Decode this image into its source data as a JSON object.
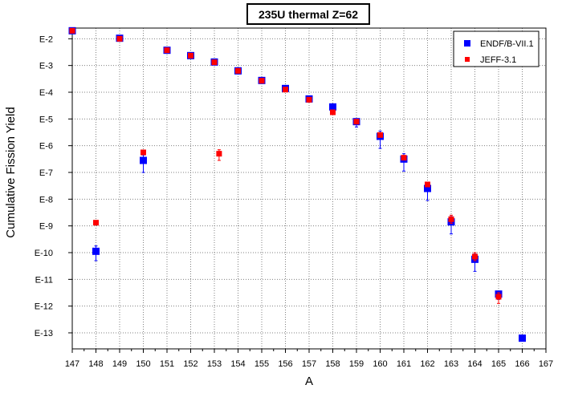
{
  "chart_data": {
    "type": "scatter",
    "title": "235U thermal Z=62",
    "xlabel": "A",
    "ylabel": "Cumulative Fission Yield",
    "xlim": [
      147,
      167
    ],
    "ylim": [
      -13.6,
      -1.6
    ],
    "y_scale": "log10",
    "x_ticks": [
      147,
      148,
      149,
      150,
      151,
      152,
      153,
      154,
      155,
      156,
      157,
      158,
      159,
      160,
      161,
      162,
      163,
      164,
      165,
      166,
      167
    ],
    "y_ticks": [
      {
        "exp": -2,
        "label": "E-2"
      },
      {
        "exp": -3,
        "label": "E-3"
      },
      {
        "exp": -4,
        "label": "E-4"
      },
      {
        "exp": -5,
        "label": "E-5"
      },
      {
        "exp": -6,
        "label": "E-6"
      },
      {
        "exp": -7,
        "label": "E-7"
      },
      {
        "exp": -8,
        "label": "E-8"
      },
      {
        "exp": -9,
        "label": "E-9"
      },
      {
        "exp": -10,
        "label": "E-10"
      },
      {
        "exp": -11,
        "label": "E-11"
      },
      {
        "exp": -12,
        "label": "E-12"
      },
      {
        "exp": -13,
        "label": "E-13"
      }
    ],
    "grid": true,
    "legend_position": "top-right",
    "series": [
      {
        "name": "ENDF/B-VII.1",
        "color": "#0000ff",
        "marker": "square-large",
        "points": [
          {
            "x": 147,
            "log10y": -1.7
          },
          {
            "x": 148,
            "log10y": -9.95,
            "err_hi": 0.2,
            "err_lo": 0.35
          },
          {
            "x": 149,
            "log10y": -1.98
          },
          {
            "x": 150,
            "log10y": -6.55,
            "err_hi": 0.2,
            "err_lo": 0.45
          },
          {
            "x": 151,
            "log10y": -2.43
          },
          {
            "x": 152,
            "log10y": -2.63
          },
          {
            "x": 153,
            "log10y": -2.87
          },
          {
            "x": 154,
            "log10y": -3.2
          },
          {
            "x": 155,
            "log10y": -3.56
          },
          {
            "x": 156,
            "log10y": -3.86
          },
          {
            "x": 157,
            "log10y": -4.25
          },
          {
            "x": 158,
            "log10y": -4.55
          },
          {
            "x": 159,
            "log10y": -5.1,
            "err_hi": 0.1,
            "err_lo": 0.2
          },
          {
            "x": 160,
            "log10y": -5.65,
            "err_hi": 0.2,
            "err_lo": 0.45
          },
          {
            "x": 161,
            "log10y": -6.5,
            "err_hi": 0.2,
            "err_lo": 0.45
          },
          {
            "x": 162,
            "log10y": -7.6,
            "err_hi": 0.2,
            "err_lo": 0.45
          },
          {
            "x": 163,
            "log10y": -8.85,
            "err_hi": 0.2,
            "err_lo": 0.45
          },
          {
            "x": 164,
            "log10y": -10.25,
            "err_hi": 0.2,
            "err_lo": 0.45
          },
          {
            "x": 165,
            "log10y": -11.55,
            "err_hi": 0.1,
            "err_lo": 0.2
          },
          {
            "x": 166,
            "log10y": -13.2
          }
        ]
      },
      {
        "name": "JEFF-3.1",
        "color": "#ff0000",
        "marker": "square-small",
        "points": [
          {
            "x": 147,
            "log10y": -1.7
          },
          {
            "x": 148,
            "log10y": -8.88
          },
          {
            "x": 149,
            "log10y": -2.0
          },
          {
            "x": 150,
            "log10y": -6.25
          },
          {
            "x": 151,
            "log10y": -2.43
          },
          {
            "x": 152,
            "log10y": -2.63
          },
          {
            "x": 153,
            "log10y": -2.88
          },
          {
            "x": 153.2,
            "log10y": -6.3,
            "err_hi": 0.15,
            "err_lo": 0.25
          },
          {
            "x": 154,
            "log10y": -3.2
          },
          {
            "x": 155,
            "log10y": -3.57
          },
          {
            "x": 156,
            "log10y": -3.9
          },
          {
            "x": 157,
            "log10y": -4.28
          },
          {
            "x": 158,
            "log10y": -4.75
          },
          {
            "x": 159,
            "log10y": -5.1
          },
          {
            "x": 160,
            "log10y": -5.6
          },
          {
            "x": 161,
            "log10y": -6.45
          },
          {
            "x": 162,
            "log10y": -7.45
          },
          {
            "x": 163,
            "log10y": -8.75,
            "err_hi": 0.15,
            "err_lo": 0.15
          },
          {
            "x": 164,
            "log10y": -10.15,
            "err_hi": 0.15,
            "err_lo": 0.15
          },
          {
            "x": 165,
            "log10y": -11.65,
            "err_hi": 0.15,
            "err_lo": 0.25
          }
        ]
      }
    ]
  }
}
